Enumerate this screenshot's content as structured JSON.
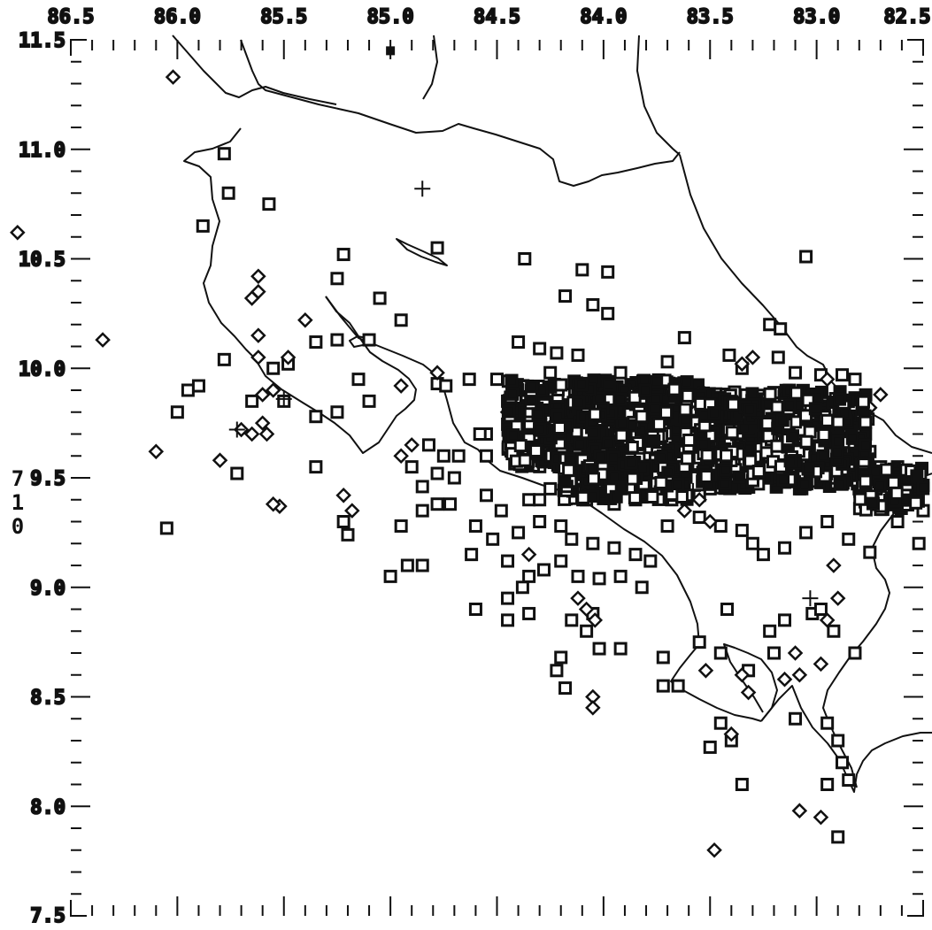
{
  "map": {
    "x_axis": {
      "labels": [
        "86.5",
        "86.0",
        "85.5",
        "85.0",
        "84.5",
        "84.0",
        "83.5",
        "83.0",
        "82.5"
      ],
      "range": [
        86.5,
        82.5
      ],
      "direction": "decreasing-to-right"
    },
    "y_axis": {
      "labels": [
        "11.5",
        "11.0",
        "10.5",
        "10.0",
        "9.5",
        "9.0",
        "8.5",
        "8.0",
        "7.5"
      ],
      "range": [
        7.5,
        11.5
      ]
    },
    "side_label_chars": [
      "7",
      "1",
      "0"
    ],
    "ink_color": "#111111",
    "background_color": "#ffffff",
    "symbols": {
      "squares": [
        [
          85.78,
          10.98
        ],
        [
          85.76,
          10.8
        ],
        [
          85.57,
          10.75
        ],
        [
          85.88,
          10.65
        ],
        [
          84.78,
          10.55
        ],
        [
          85.22,
          10.52
        ],
        [
          84.37,
          10.5
        ],
        [
          83.05,
          10.51
        ],
        [
          85.25,
          10.41
        ],
        [
          84.1,
          10.45
        ],
        [
          83.98,
          10.44
        ],
        [
          85.05,
          10.32
        ],
        [
          84.18,
          10.33
        ],
        [
          84.05,
          10.29
        ],
        [
          83.98,
          10.25
        ],
        [
          84.95,
          10.22
        ],
        [
          83.22,
          10.2
        ],
        [
          83.17,
          10.18
        ],
        [
          84.4,
          10.12
        ],
        [
          84.3,
          10.09
        ],
        [
          84.22,
          10.07
        ],
        [
          84.12,
          10.06
        ],
        [
          83.62,
          10.14
        ],
        [
          83.41,
          10.06
        ],
        [
          83.18,
          10.05
        ],
        [
          85.1,
          10.13
        ],
        [
          85.25,
          10.13
        ],
        [
          83.7,
          10.03
        ],
        [
          83.35,
          10.0
        ],
        [
          83.1,
          9.98
        ],
        [
          82.98,
          9.97
        ],
        [
          82.88,
          9.97
        ],
        [
          82.82,
          9.95
        ],
        [
          84.78,
          9.93
        ],
        [
          84.74,
          9.92
        ],
        [
          84.63,
          9.95
        ],
        [
          84.5,
          9.95
        ],
        [
          84.25,
          9.98
        ],
        [
          85.5,
          9.85
        ],
        [
          85.65,
          9.85
        ],
        [
          85.25,
          9.8
        ],
        [
          84.45,
          9.85
        ],
        [
          84.55,
          9.7
        ],
        [
          84.68,
          9.6
        ],
        [
          84.78,
          9.52
        ],
        [
          84.85,
          9.46
        ],
        [
          84.7,
          9.5
        ],
        [
          84.72,
          9.38
        ],
        [
          84.55,
          9.42
        ],
        [
          84.48,
          9.35
        ],
        [
          84.35,
          9.4
        ],
        [
          84.3,
          9.3
        ],
        [
          84.2,
          9.28
        ],
        [
          84.15,
          9.22
        ],
        [
          84.05,
          9.2
        ],
        [
          83.95,
          9.18
        ],
        [
          83.85,
          9.15
        ],
        [
          83.78,
          9.12
        ],
        [
          83.7,
          9.28
        ],
        [
          83.55,
          9.32
        ],
        [
          83.45,
          9.28
        ],
        [
          83.35,
          9.26
        ],
        [
          83.3,
          9.2
        ],
        [
          83.25,
          9.15
        ],
        [
          83.15,
          9.18
        ],
        [
          83.05,
          9.25
        ],
        [
          82.95,
          9.3
        ],
        [
          82.85,
          9.22
        ],
        [
          82.75,
          9.16
        ],
        [
          82.62,
          9.3
        ],
        [
          84.4,
          9.25
        ],
        [
          84.45,
          9.12
        ],
        [
          84.2,
          9.12
        ],
        [
          84.12,
          9.05
        ],
        [
          84.02,
          9.04
        ],
        [
          83.92,
          9.05
        ],
        [
          83.82,
          9.0
        ],
        [
          84.35,
          9.05
        ],
        [
          84.28,
          9.08
        ],
        [
          84.05,
          8.88
        ],
        [
          84.08,
          8.8
        ],
        [
          84.02,
          8.72
        ],
        [
          84.15,
          8.85
        ],
        [
          83.92,
          8.72
        ],
        [
          83.72,
          8.68
        ],
        [
          83.55,
          8.75
        ],
        [
          83.42,
          8.9
        ],
        [
          83.45,
          8.7
        ],
        [
          83.32,
          8.62
        ],
        [
          83.22,
          8.8
        ],
        [
          83.15,
          8.85
        ],
        [
          83.2,
          8.7
        ],
        [
          83.02,
          8.88
        ],
        [
          82.98,
          8.9
        ],
        [
          82.92,
          8.8
        ],
        [
          82.82,
          8.7
        ],
        [
          83.1,
          8.4
        ],
        [
          82.95,
          8.38
        ],
        [
          82.9,
          8.3
        ],
        [
          82.88,
          8.2
        ],
        [
          82.95,
          8.1
        ],
        [
          82.85,
          8.12
        ],
        [
          82.9,
          7.86
        ],
        [
          83.4,
          8.3
        ],
        [
          83.45,
          8.38
        ],
        [
          83.5,
          8.27
        ],
        [
          83.35,
          8.1
        ],
        [
          84.18,
          8.54
        ],
        [
          83.72,
          8.55
        ],
        [
          83.65,
          8.55
        ],
        [
          84.2,
          8.68
        ],
        [
          84.45,
          8.85
        ],
        [
          86.0,
          9.8
        ],
        [
          85.95,
          9.9
        ],
        [
          85.9,
          9.92
        ],
        [
          85.72,
          9.52
        ],
        [
          86.05,
          9.27
        ],
        [
          85.35,
          9.55
        ],
        [
          85.35,
          9.78
        ],
        [
          85.35,
          10.12
        ],
        [
          85.15,
          9.95
        ],
        [
          85.1,
          9.85
        ],
        [
          85.48,
          10.02
        ],
        [
          85.55,
          10.0
        ],
        [
          85.78,
          10.04
        ],
        [
          84.82,
          9.65
        ],
        [
          84.9,
          9.55
        ],
        [
          84.75,
          9.6
        ],
        [
          84.95,
          9.28
        ],
        [
          84.92,
          9.1
        ],
        [
          85.0,
          9.05
        ],
        [
          85.22,
          9.3
        ],
        [
          85.2,
          9.24
        ],
        [
          84.85,
          9.35
        ],
        [
          84.78,
          9.38
        ],
        [
          84.6,
          9.28
        ],
        [
          84.52,
          9.22
        ],
        [
          84.62,
          9.15
        ],
        [
          84.38,
          9.0
        ],
        [
          84.35,
          8.88
        ],
        [
          84.6,
          8.9
        ],
        [
          84.85,
          9.1
        ],
        [
          84.22,
          8.62
        ],
        [
          84.45,
          8.95
        ],
        [
          84.55,
          9.6
        ],
        [
          84.58,
          9.7
        ],
        [
          84.05,
          9.8
        ],
        [
          84.2,
          9.78
        ],
        [
          83.9,
          9.82
        ],
        [
          83.85,
          9.92
        ],
        [
          83.92,
          9.98
        ],
        [
          83.4,
          9.85
        ],
        [
          83.25,
          9.85
        ],
        [
          83.15,
          9.78
        ],
        [
          83.1,
          9.7
        ],
        [
          82.92,
          9.78
        ],
        [
          82.85,
          9.72
        ],
        [
          82.75,
          9.62
        ],
        [
          82.7,
          9.55
        ],
        [
          82.62,
          9.55
        ],
        [
          82.6,
          9.45
        ],
        [
          82.55,
          9.4
        ],
        [
          82.5,
          9.35
        ],
        [
          82.52,
          9.2
        ],
        [
          82.72,
          9.45
        ],
        [
          82.8,
          9.45
        ],
        [
          82.88,
          9.48
        ],
        [
          83.0,
          9.5
        ],
        [
          83.08,
          9.45
        ],
        [
          83.15,
          9.48
        ],
        [
          83.22,
          9.5
        ],
        [
          83.3,
          9.55
        ],
        [
          83.4,
          9.5
        ],
        [
          83.5,
          9.45
        ],
        [
          83.55,
          9.42
        ],
        [
          83.6,
          9.6
        ],
        [
          83.7,
          9.6
        ],
        [
          83.75,
          9.65
        ],
        [
          83.82,
          9.62
        ],
        [
          83.9,
          9.55
        ],
        [
          83.95,
          9.5
        ],
        [
          84.05,
          9.45
        ],
        [
          84.15,
          9.55
        ],
        [
          84.2,
          9.6
        ],
        [
          84.25,
          9.45
        ],
        [
          84.3,
          9.4
        ],
        [
          84.08,
          9.4
        ],
        [
          83.95,
          9.38
        ],
        [
          83.85,
          9.4
        ],
        [
          83.78,
          9.42
        ],
        [
          83.68,
          9.4
        ]
      ],
      "diamonds": [
        [
          86.02,
          11.33
        ],
        [
          86.75,
          10.62
        ],
        [
          85.62,
          10.42
        ],
        [
          85.62,
          10.35
        ],
        [
          85.65,
          10.32
        ],
        [
          85.62,
          10.15
        ],
        [
          85.62,
          10.05
        ],
        [
          85.4,
          10.22
        ],
        [
          85.48,
          10.05
        ],
        [
          86.35,
          10.13
        ],
        [
          85.6,
          9.88
        ],
        [
          85.55,
          9.9
        ],
        [
          85.6,
          9.75
        ],
        [
          85.58,
          9.7
        ],
        [
          85.65,
          9.7
        ],
        [
          85.7,
          9.72
        ],
        [
          85.8,
          9.58
        ],
        [
          85.52,
          9.37
        ],
        [
          85.22,
          9.42
        ],
        [
          85.18,
          9.35
        ],
        [
          84.95,
          9.6
        ],
        [
          84.9,
          9.65
        ],
        [
          84.95,
          9.92
        ],
        [
          84.78,
          9.98
        ],
        [
          84.35,
          9.15
        ],
        [
          84.12,
          8.95
        ],
        [
          84.08,
          8.9
        ],
        [
          84.04,
          8.85
        ],
        [
          84.05,
          8.5
        ],
        [
          84.05,
          8.45
        ],
        [
          83.52,
          8.62
        ],
        [
          83.35,
          8.6
        ],
        [
          83.32,
          8.52
        ],
        [
          83.15,
          8.58
        ],
        [
          83.1,
          8.7
        ],
        [
          83.08,
          8.6
        ],
        [
          82.98,
          8.65
        ],
        [
          82.95,
          8.85
        ],
        [
          82.9,
          8.95
        ],
        [
          82.92,
          9.1
        ],
        [
          83.4,
          8.33
        ],
        [
          82.98,
          7.95
        ],
        [
          83.08,
          7.98
        ],
        [
          83.48,
          7.8
        ],
        [
          83.55,
          9.4
        ],
        [
          83.5,
          9.3
        ],
        [
          83.62,
          9.35
        ],
        [
          83.35,
          10.02
        ],
        [
          83.3,
          10.05
        ],
        [
          84.2,
          9.9
        ],
        [
          84.45,
          9.8
        ],
        [
          82.7,
          9.88
        ],
        [
          82.75,
          9.82
        ],
        [
          82.95,
          9.95
        ],
        [
          85.55,
          9.38
        ],
        [
          86.1,
          9.62
        ]
      ],
      "crosses": [
        [
          84.85,
          10.82
        ],
        [
          85.5,
          9.86
        ],
        [
          85.72,
          9.72
        ],
        [
          83.58,
          9.44
        ],
        [
          83.03,
          8.95
        ]
      ],
      "filled_square": [
        [
          85.0,
          11.45
        ]
      ]
    }
  }
}
